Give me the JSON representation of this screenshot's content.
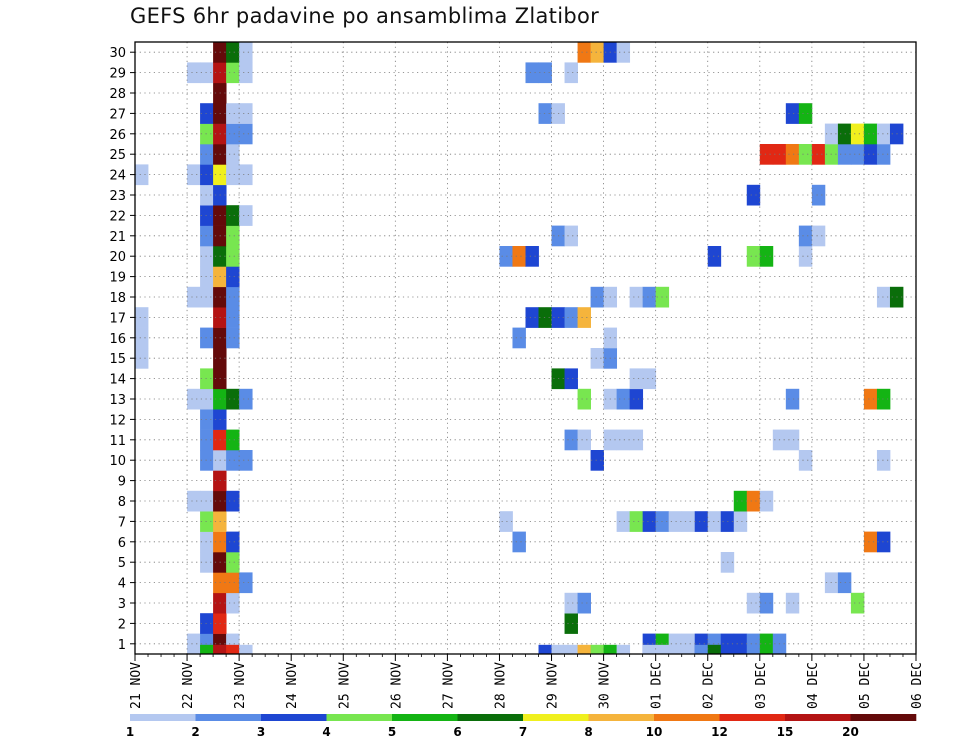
{
  "chart_data": {
    "type": "heatmap",
    "title": "GEFS 6hr padavine po ansamblima Zlatibor",
    "xlabel": "",
    "ylabel": "",
    "x_ticks": [
      "21 NOV",
      "22 NOV",
      "23 NOV",
      "24 NOV",
      "25 NOV",
      "26 NOV",
      "27 NOV",
      "28 NOV",
      "29 NOV",
      "30 NOV",
      "01 DEC",
      "02 DEC",
      "03 DEC",
      "04 DEC",
      "05 DEC",
      "06 DEC"
    ],
    "y_ticks": [
      "1",
      "2",
      "3",
      "4",
      "5",
      "6",
      "7",
      "8",
      "9",
      "10",
      "11",
      "12",
      "13",
      "14",
      "15",
      "16",
      "17",
      "18",
      "19",
      "20",
      "21",
      "22",
      "23",
      "24",
      "25",
      "26",
      "27",
      "28",
      "29",
      "30"
    ],
    "x_unit": "6-hour step from 21 NOV 00Z",
    "ylim": [
      0,
      30
    ],
    "grid": true,
    "legend": {
      "placement": "bottom",
      "labels": [
        "1",
        "2",
        "3",
        "4",
        "5",
        "6",
        "7",
        "8",
        "10",
        "12",
        "15",
        "20"
      ],
      "colors": [
        "#b4c8f0",
        "#5a8ce6",
        "#1e46d2",
        "#78e650",
        "#14b414",
        "#0a6e0a",
        "#f0f01e",
        "#f5b43c",
        "#f07814",
        "#e12814",
        "#b41414",
        "#640a0a"
      ]
    },
    "ensemble_cells": [
      {
        "member": 1,
        "cells": [
          [
            4,
            1
          ],
          [
            5,
            2
          ],
          [
            6,
            12
          ],
          [
            7,
            1
          ],
          [
            39,
            3
          ],
          [
            40,
            5
          ],
          [
            41,
            1
          ],
          [
            42,
            1
          ],
          [
            43,
            3
          ],
          [
            44,
            2
          ],
          [
            45,
            3
          ],
          [
            46,
            3
          ],
          [
            47,
            2
          ],
          [
            48,
            5
          ],
          [
            49,
            2
          ]
        ]
      },
      {
        "member": 2,
        "cells": [
          [
            5,
            3
          ],
          [
            6,
            10
          ],
          [
            33,
            6
          ]
        ]
      },
      {
        "member": 3,
        "cells": [
          [
            6,
            11
          ],
          [
            7,
            1
          ],
          [
            33,
            1
          ],
          [
            34,
            2
          ],
          [
            47,
            1
          ],
          [
            48,
            2
          ],
          [
            50,
            1
          ],
          [
            55,
            4
          ]
        ]
      },
      {
        "member": 4,
        "cells": [
          [
            6,
            9
          ],
          [
            7,
            9
          ],
          [
            8,
            2
          ],
          [
            53,
            1
          ],
          [
            54,
            2
          ]
        ]
      },
      {
        "member": 5,
        "cells": [
          [
            5,
            1
          ],
          [
            6,
            12
          ],
          [
            7,
            4
          ],
          [
            45,
            1
          ]
        ]
      },
      {
        "member": 6,
        "cells": [
          [
            5,
            1
          ],
          [
            6,
            9
          ],
          [
            7,
            3
          ],
          [
            29,
            2
          ],
          [
            56,
            9
          ],
          [
            57,
            3
          ]
        ]
      },
      {
        "member": 7,
        "cells": [
          [
            5,
            4
          ],
          [
            6,
            8
          ],
          [
            28,
            1
          ],
          [
            37,
            1
          ],
          [
            38,
            4
          ],
          [
            39,
            3
          ],
          [
            40,
            2
          ],
          [
            41,
            1
          ],
          [
            42,
            1
          ],
          [
            43,
            3
          ],
          [
            44,
            1
          ],
          [
            45,
            3
          ],
          [
            46,
            1
          ]
        ]
      },
      {
        "member": 8,
        "cells": [
          [
            4,
            1
          ],
          [
            5,
            1
          ],
          [
            6,
            12
          ],
          [
            7,
            3
          ],
          [
            46,
            5
          ],
          [
            47,
            9
          ],
          [
            48,
            1
          ]
        ]
      },
      {
        "member": 9,
        "cells": [
          [
            6,
            11
          ]
        ]
      },
      {
        "member": 10,
        "cells": [
          [
            5,
            2
          ],
          [
            6,
            1
          ],
          [
            7,
            2
          ],
          [
            8,
            2
          ],
          [
            35,
            3
          ],
          [
            51,
            1
          ],
          [
            57,
            1
          ]
        ]
      },
      {
        "member": 11,
        "cells": [
          [
            5,
            2
          ],
          [
            6,
            10
          ],
          [
            7,
            5
          ],
          [
            33,
            2
          ],
          [
            34,
            1
          ],
          [
            36,
            1
          ],
          [
            37,
            1
          ],
          [
            38,
            1
          ],
          [
            49,
            1
          ],
          [
            50,
            1
          ]
        ]
      },
      {
        "member": 12,
        "cells": [
          [
            5,
            2
          ],
          [
            6,
            3
          ]
        ]
      },
      {
        "member": 13,
        "cells": [
          [
            4,
            1
          ],
          [
            5,
            1
          ],
          [
            6,
            5
          ],
          [
            7,
            6
          ],
          [
            8,
            2
          ],
          [
            34,
            4
          ],
          [
            36,
            1
          ],
          [
            37,
            2
          ],
          [
            38,
            3
          ],
          [
            50,
            2
          ],
          [
            56,
            9
          ],
          [
            57,
            5
          ]
        ]
      },
      {
        "member": 14,
        "cells": [
          [
            5,
            4
          ],
          [
            6,
            12
          ],
          [
            32,
            6
          ],
          [
            33,
            3
          ],
          [
            38,
            1
          ],
          [
            39,
            1
          ]
        ]
      },
      {
        "member": 15,
        "cells": [
          [
            0,
            1
          ],
          [
            6,
            12
          ],
          [
            35,
            1
          ],
          [
            36,
            2
          ]
        ]
      },
      {
        "member": 16,
        "cells": [
          [
            0,
            1
          ],
          [
            5,
            2
          ],
          [
            6,
            12
          ],
          [
            7,
            2
          ],
          [
            29,
            2
          ],
          [
            36,
            1
          ]
        ]
      },
      {
        "member": 17,
        "cells": [
          [
            0,
            1
          ],
          [
            6,
            11
          ],
          [
            7,
            2
          ],
          [
            30,
            3
          ],
          [
            31,
            6
          ],
          [
            32,
            3
          ],
          [
            33,
            2
          ],
          [
            34,
            8
          ]
        ]
      },
      {
        "member": 18,
        "cells": [
          [
            4,
            1
          ],
          [
            5,
            1
          ],
          [
            6,
            12
          ],
          [
            7,
            2
          ],
          [
            35,
            2
          ],
          [
            36,
            1
          ],
          [
            38,
            1
          ],
          [
            39,
            2
          ],
          [
            40,
            4
          ],
          [
            57,
            1
          ],
          [
            58,
            6
          ]
        ]
      },
      {
        "member": 19,
        "cells": [
          [
            5,
            1
          ],
          [
            6,
            8
          ],
          [
            7,
            3
          ]
        ]
      },
      {
        "member": 20,
        "cells": [
          [
            5,
            1
          ],
          [
            6,
            6
          ],
          [
            7,
            4
          ],
          [
            28,
            2
          ],
          [
            29,
            9
          ],
          [
            30,
            3
          ],
          [
            44,
            3
          ],
          [
            47,
            4
          ],
          [
            48,
            5
          ],
          [
            51,
            1
          ]
        ]
      },
      {
        "member": 21,
        "cells": [
          [
            5,
            2
          ],
          [
            6,
            12
          ],
          [
            7,
            4
          ],
          [
            32,
            2
          ],
          [
            33,
            1
          ],
          [
            51,
            2
          ],
          [
            52,
            1
          ]
        ]
      },
      {
        "member": 22,
        "cells": [
          [
            5,
            3
          ],
          [
            6,
            12
          ],
          [
            7,
            6
          ],
          [
            8,
            1
          ]
        ]
      },
      {
        "member": 23,
        "cells": [
          [
            5,
            1
          ],
          [
            6,
            3
          ],
          [
            47,
            3
          ],
          [
            52,
            2
          ]
        ]
      },
      {
        "member": 24,
        "cells": [
          [
            0,
            1
          ],
          [
            4,
            1
          ],
          [
            5,
            3
          ],
          [
            6,
            7
          ],
          [
            7,
            1
          ],
          [
            8,
            1
          ]
        ]
      },
      {
        "member": 25,
        "cells": [
          [
            5,
            2
          ],
          [
            6,
            12
          ],
          [
            7,
            1
          ],
          [
            48,
            10
          ],
          [
            49,
            10
          ],
          [
            50,
            9
          ],
          [
            51,
            4
          ],
          [
            52,
            10
          ],
          [
            53,
            4
          ],
          [
            54,
            2
          ],
          [
            55,
            2
          ],
          [
            56,
            3
          ],
          [
            57,
            2
          ]
        ]
      },
      {
        "member": 26,
        "cells": [
          [
            5,
            4
          ],
          [
            6,
            11
          ],
          [
            7,
            2
          ],
          [
            8,
            2
          ],
          [
            53,
            1
          ],
          [
            54,
            6
          ],
          [
            55,
            7
          ],
          [
            56,
            5
          ],
          [
            57,
            1
          ],
          [
            58,
            3
          ]
        ]
      },
      {
        "member": 27,
        "cells": [
          [
            5,
            3
          ],
          [
            6,
            12
          ],
          [
            7,
            1
          ],
          [
            8,
            1
          ],
          [
            31,
            2
          ],
          [
            32,
            1
          ],
          [
            50,
            3
          ],
          [
            51,
            5
          ]
        ]
      },
      {
        "member": 28,
        "cells": [
          [
            6,
            12
          ]
        ]
      },
      {
        "member": 29,
        "cells": [
          [
            4,
            1
          ],
          [
            5,
            1
          ],
          [
            6,
            11
          ],
          [
            7,
            4
          ],
          [
            8,
            1
          ],
          [
            30,
            2
          ],
          [
            31,
            2
          ],
          [
            33,
            1
          ]
        ]
      },
      {
        "member": 30,
        "cells": [
          [
            6,
            12
          ],
          [
            7,
            6
          ],
          [
            8,
            1
          ],
          [
            34,
            9
          ],
          [
            35,
            8
          ],
          [
            36,
            3
          ],
          [
            37,
            1
          ]
        ]
      },
      {
        "member": 0,
        "cells": [
          [
            5,
            5
          ],
          [
            6,
            11
          ],
          [
            7,
            10
          ],
          [
            8,
            1
          ],
          [
            31,
            3
          ],
          [
            32,
            1
          ],
          [
            33,
            1
          ],
          [
            34,
            8
          ],
          [
            35,
            4
          ],
          [
            36,
            5
          ],
          [
            37,
            1
          ],
          [
            39,
            1
          ],
          [
            40,
            1
          ],
          [
            43,
            2
          ],
          [
            44,
            6
          ],
          [
            45,
            3
          ]
        ]
      }
    ]
  }
}
